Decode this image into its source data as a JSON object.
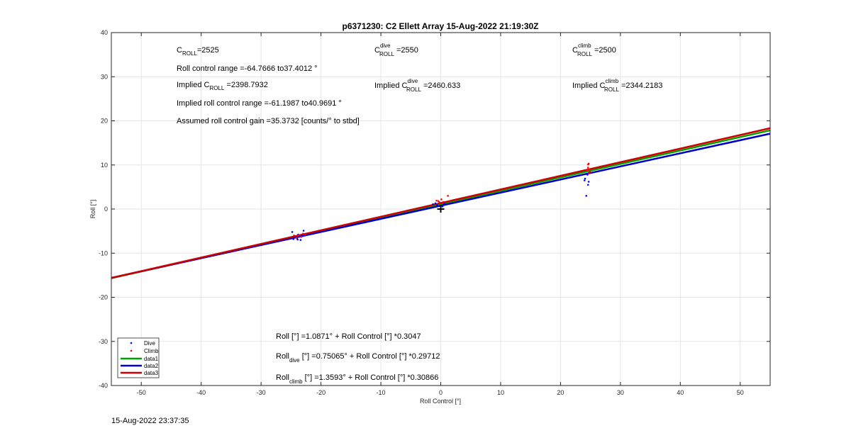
{
  "chart_data": {
    "type": "scatter",
    "title": "p6371230: C2 Ellett Array 15-Aug-2022 21:19:30Z",
    "xlabel": "Roll Control [°]",
    "ylabel": "Roll [°]",
    "xlim": [
      -55,
      55
    ],
    "ylim": [
      -40,
      40
    ],
    "xticks": [
      -50,
      -40,
      -30,
      -20,
      -10,
      0,
      10,
      20,
      30,
      40,
      50
    ],
    "yticks": [
      -40,
      -30,
      -20,
      -10,
      0,
      10,
      20,
      30,
      40
    ],
    "grid": true,
    "legend_position": "bottom-left",
    "series": [
      {
        "name": "Dive",
        "kind": "points",
        "color": "#0000ff",
        "points": [
          [
            -24.8,
            -5.2
          ],
          [
            -24.6,
            -6.8
          ],
          [
            -24.2,
            -6.4
          ],
          [
            -23.9,
            -6.9
          ],
          [
            -23.6,
            -6.2
          ],
          [
            -23.4,
            -7.0
          ],
          [
            -23.2,
            -6.1
          ],
          [
            -24.0,
            -6.6
          ],
          [
            -23.8,
            -5.8
          ],
          [
            -22.9,
            -4.9
          ],
          [
            -1.3,
            1.1
          ],
          [
            -0.6,
            0.9
          ],
          [
            -0.2,
            1.5
          ],
          [
            0.3,
            0.6
          ],
          [
            0.6,
            1.2
          ],
          [
            -0.9,
            1.3
          ],
          [
            24.0,
            6.5
          ],
          [
            24.1,
            6.9
          ],
          [
            24.3,
            3.0
          ],
          [
            24.5,
            7.8
          ],
          [
            24.6,
            5.5
          ],
          [
            24.7,
            6.2
          ],
          [
            24.4,
            8.0
          ]
        ]
      },
      {
        "name": "Climb",
        "kind": "points",
        "color": "#ff0000",
        "points": [
          [
            -24.5,
            -6.0
          ],
          [
            -24.1,
            -6.5
          ],
          [
            -23.7,
            -5.9
          ],
          [
            -23.3,
            -6.3
          ],
          [
            -23.0,
            -5.6
          ],
          [
            -22.6,
            -5.8
          ],
          [
            -0.4,
            1.8
          ],
          [
            -0.2,
            1.4
          ],
          [
            0.1,
            2.2
          ],
          [
            0.4,
            1.6
          ],
          [
            1.2,
            3.0
          ],
          [
            -0.7,
            1.9
          ],
          [
            24.5,
            8.9
          ],
          [
            24.6,
            9.4
          ],
          [
            24.7,
            10.3
          ],
          [
            24.8,
            9.0
          ],
          [
            24.9,
            8.5
          ],
          [
            24.6,
            10.1
          ],
          [
            24.7,
            8.2
          ]
        ]
      },
      {
        "name": "data1",
        "kind": "line",
        "color": "#00a000",
        "intercept": 1.0871,
        "slope": 0.3047
      },
      {
        "name": "data2",
        "kind": "line",
        "color": "#0000c8",
        "intercept": 0.75065,
        "slope": 0.29712
      },
      {
        "name": "data3",
        "kind": "line",
        "color": "#d00000",
        "intercept": 1.3593,
        "slope": 0.30866
      }
    ],
    "marker": {
      "x": 0,
      "y": 0,
      "symbol": "+"
    },
    "annotations": {
      "croll": {
        "base": "C",
        "sub": "ROLL",
        "rest": "=2525"
      },
      "range": "Roll control range =-64.7666 to37.4012 °",
      "implied_prefix": "Implied C",
      "implied_sub": "ROLL",
      "implied_value": " =2398.7932",
      "implied_range": "Implied roll control range =-61.1987 to40.9691 °",
      "gain": "Assumed roll control gain =35.3732 [counts/° to stbd]",
      "cdive": {
        "base": "C",
        "sup": "dive",
        "sub": "ROLL",
        "rest": " =2550"
      },
      "implied_dive": {
        "prefix": "Implied C",
        "sup": "dive",
        "sub": "ROLL",
        "rest": " =2460.633"
      },
      "cclimb": {
        "base": "C",
        "sup": "climb",
        "sub": "ROLL",
        "rest": " =2500"
      },
      "implied_climb": {
        "prefix": "Implied C",
        "sup": "climb",
        "sub": "ROLL",
        "rest": " =2344.2183"
      },
      "fit_all": "Roll [°] =1.0871° + Roll Control [°] *0.3047",
      "fit_dive": {
        "prefix": "Roll",
        "sub": "dive",
        "rest": " [°] =0.75065° + Roll Control [°] *0.29712"
      },
      "fit_climb": {
        "prefix": "Roll",
        "sub": "climb",
        "rest": " [°] =1.3593° + Roll Control [°] *0.30866"
      }
    }
  },
  "footer": {
    "timestamp": "15-Aug-2022 23:37:35"
  }
}
